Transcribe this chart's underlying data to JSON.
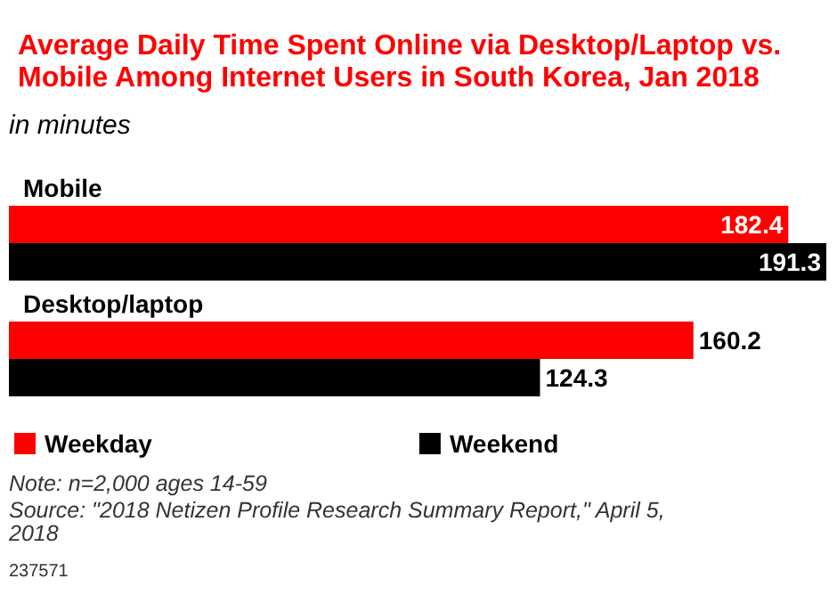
{
  "chart_data": {
    "type": "bar",
    "orientation": "horizontal",
    "title": "Average Daily Time Spent Online via Desktop/Laptop vs. Mobile Among Internet Users in South Korea, Jan 2018",
    "subtitle": "in minutes",
    "categories": [
      "Mobile",
      "Desktop/laptop"
    ],
    "series": [
      {
        "name": "Weekday",
        "color": "#ff0000",
        "values": [
          182.4,
          160.2
        ]
      },
      {
        "name": "Weekend",
        "color": "#000000",
        "values": [
          191.3,
          124.3
        ]
      }
    ],
    "data_labels": true,
    "legend": "bottom",
    "grid": false,
    "annotations": [
      "Note: n=2,000 ages 14-59",
      "Source: \"2018 Netizen Profile Research Summary Report,\" April 5, 2018",
      "237571"
    ]
  }
}
